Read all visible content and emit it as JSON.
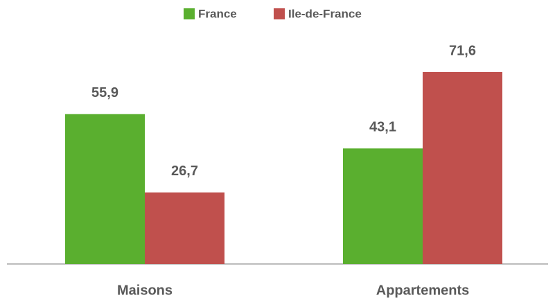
{
  "chart_data": {
    "type": "bar",
    "categories": [
      "Maisons",
      "Appartements"
    ],
    "series": [
      {
        "name": "France",
        "color": "#5aaf2f",
        "values": [
          55.9,
          43.1
        ],
        "value_labels": [
          "55,9",
          "43,1"
        ]
      },
      {
        "name": "Ile-de-France",
        "color": "#c0504d",
        "values": [
          26.7,
          71.6
        ],
        "value_labels": [
          "26,7",
          "71,6"
        ]
      }
    ],
    "legend": "top"
  }
}
